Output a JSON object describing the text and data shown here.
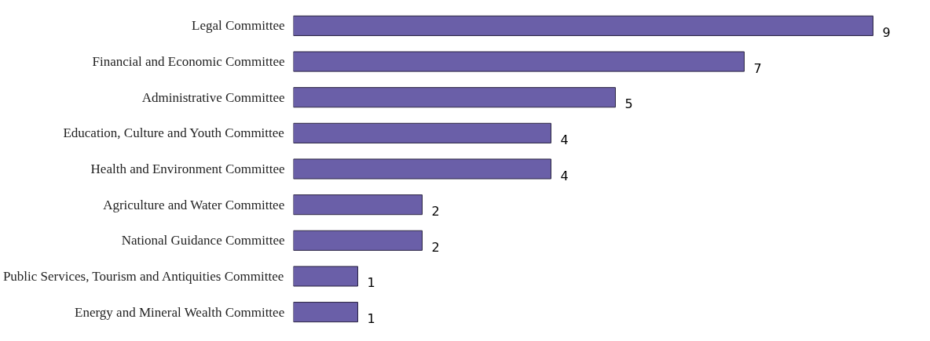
{
  "chart_data": {
    "type": "bar",
    "orientation": "horizontal",
    "categories": [
      "Legal Committee",
      "Financial and Economic Committee",
      "Administrative Committee",
      "Education, Culture and Youth Committee",
      "Health and Environment Committee",
      "Agriculture and Water Committee",
      "National Guidance Committee",
      "Public Services, Tourism and Antiquities Committee",
      "Energy and Mineral Wealth Committee"
    ],
    "values": [
      9,
      7,
      5,
      4,
      4,
      2,
      2,
      1,
      1
    ],
    "color": "#6a5fa8",
    "data_labels": true
  }
}
